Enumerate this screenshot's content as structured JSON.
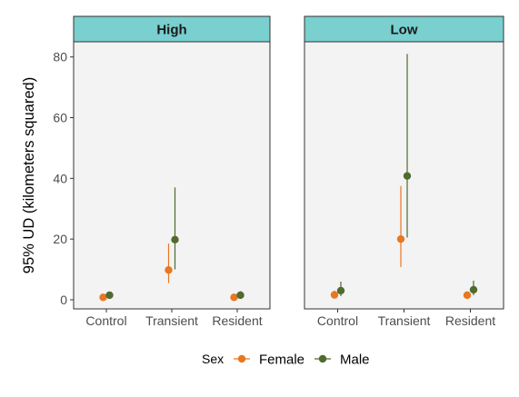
{
  "chart_data": {
    "type": "scatter",
    "ylabel": "95% UD (kilometers squared)",
    "xlabel": "",
    "categories": [
      "Control",
      "Transient",
      "Resident"
    ],
    "ylim": [
      -3,
      85
    ],
    "yticks": [
      0,
      20,
      40,
      60,
      80
    ],
    "grid": false,
    "legend": {
      "title": "Sex",
      "position": "bottom",
      "entries": [
        "Female",
        "Male"
      ]
    },
    "colors": {
      "Female": "#E87722",
      "Male": "#4F6B2E",
      "strip": "#7ACFCF",
      "panel": "#F3F3F3"
    },
    "panels": [
      {
        "title": "High",
        "series": [
          {
            "name": "Female",
            "points": [
              {
                "x": "Control",
                "y": 0.8,
                "low": 0.2,
                "high": 1.6
              },
              {
                "x": "Transient",
                "y": 9.8,
                "low": 5.5,
                "high": 18.5
              },
              {
                "x": "Resident",
                "y": 0.8,
                "low": 0.3,
                "high": 1.8
              }
            ]
          },
          {
            "name": "Male",
            "points": [
              {
                "x": "Control",
                "y": 1.5,
                "low": 0.6,
                "high": 2.2
              },
              {
                "x": "Transient",
                "y": 19.8,
                "low": 10.0,
                "high": 37.0
              },
              {
                "x": "Resident",
                "y": 1.5,
                "low": 0.7,
                "high": 2.8
              }
            ]
          }
        ]
      },
      {
        "title": "Low",
        "series": [
          {
            "name": "Female",
            "points": [
              {
                "x": "Control",
                "y": 1.6,
                "low": 0.5,
                "high": 3.0
              },
              {
                "x": "Transient",
                "y": 20.0,
                "low": 10.8,
                "high": 37.5
              },
              {
                "x": "Resident",
                "y": 1.5,
                "low": 0.6,
                "high": 2.8
              }
            ]
          },
          {
            "name": "Male",
            "points": [
              {
                "x": "Control",
                "y": 3.0,
                "low": 1.2,
                "high": 6.0
              },
              {
                "x": "Transient",
                "y": 40.8,
                "low": 20.5,
                "high": 81.0
              },
              {
                "x": "Resident",
                "y": 3.3,
                "low": 1.5,
                "high": 6.3
              }
            ]
          }
        ]
      }
    ]
  }
}
